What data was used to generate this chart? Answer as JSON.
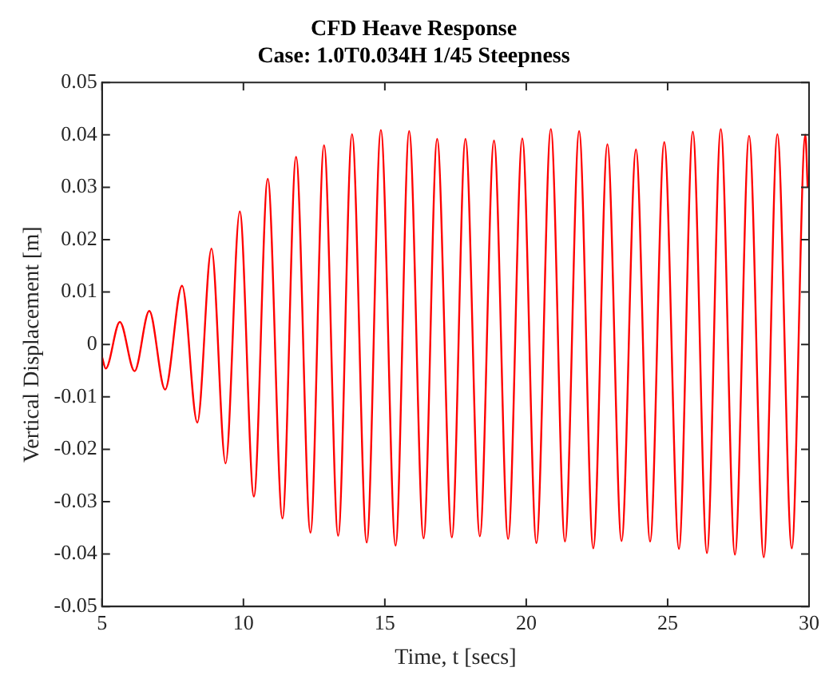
{
  "chart_data": {
    "type": "line",
    "title": "CFD Heave Response",
    "subtitle": "Case: 1.0T0.034H 1/45 Steepness",
    "xlabel": "Time, t [secs]",
    "ylabel": "Vertical Displacement [m]",
    "xlim": [
      5,
      30
    ],
    "xticks": [
      5,
      10,
      15,
      20,
      25,
      30
    ],
    "ylim": [
      -0.05,
      0.05
    ],
    "yticks": [
      -0.05,
      -0.04,
      -0.03,
      -0.02,
      -0.01,
      0,
      0.01,
      0.02,
      0.03,
      0.04,
      0.05
    ],
    "grid": false,
    "legend": false,
    "marker": "none",
    "line_style": "solid",
    "series": [
      {
        "color": "#ff0000",
        "x": [
          5,
          5.13,
          5.63,
          6.15,
          6.67,
          7.23,
          7.83,
          8.37,
          8.87,
          9.37,
          9.87,
          10.37,
          10.86,
          11.38,
          11.86,
          12.37,
          12.85,
          13.35,
          13.84,
          14.36,
          14.86,
          15.38,
          15.86,
          16.37,
          16.85,
          17.37,
          17.85,
          18.36,
          18.86,
          19.36,
          19.86,
          20.36,
          20.87,
          21.37,
          21.87,
          22.37,
          22.87,
          23.37,
          23.88,
          24.38,
          24.88,
          25.4,
          25.89,
          26.39,
          26.88,
          27.38,
          27.88,
          28.4,
          28.88,
          29.39,
          29.87,
          29.95
        ],
        "values": [
          -0.0024,
          -0.0046,
          0.0043,
          -0.0051,
          0.0064,
          -0.0086,
          0.0112,
          -0.0149,
          0.0183,
          -0.0227,
          0.0254,
          -0.029,
          0.0316,
          -0.0332,
          0.0358,
          -0.0359,
          0.038,
          -0.0365,
          0.0401,
          -0.0378,
          0.0409,
          -0.0384,
          0.0407,
          -0.037,
          0.0392,
          -0.0368,
          0.0392,
          -0.0366,
          0.0389,
          -0.0371,
          0.0393,
          -0.0379,
          0.0411,
          -0.0376,
          0.0407,
          -0.0389,
          0.0382,
          -0.0375,
          0.0372,
          -0.0376,
          0.0386,
          -0.039,
          0.0406,
          -0.0398,
          0.0411,
          -0.0401,
          0.0398,
          -0.0406,
          0.0401,
          -0.0389,
          0.04,
          0.03
        ]
      }
    ]
  }
}
